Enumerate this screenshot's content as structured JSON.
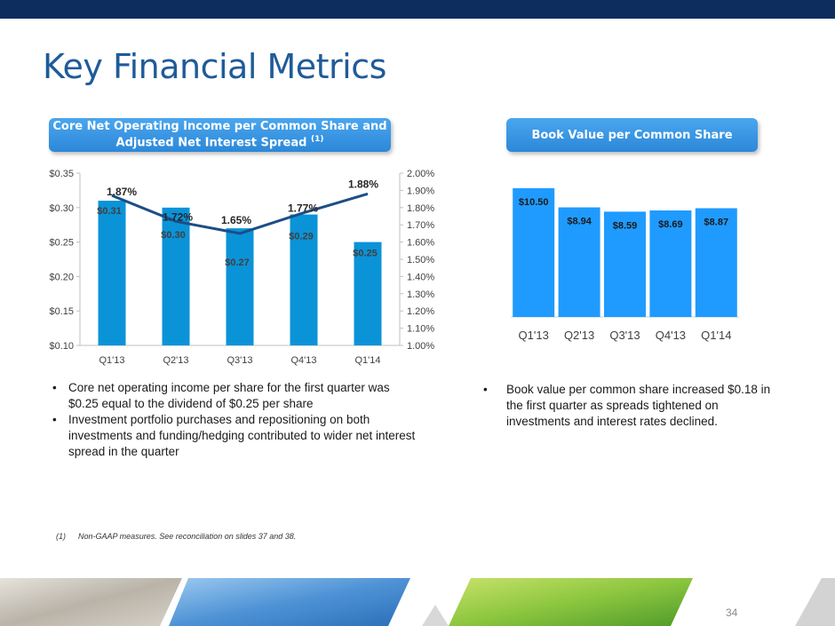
{
  "slide": {
    "title": "Key Financial Metrics",
    "page_number": "34",
    "colors": {
      "top_bar": "#0d2d5e",
      "title": "#1f5b99",
      "pill": "#3597e4",
      "left_bars": "#0b93d8",
      "line": "#1b4e85",
      "right_bars": "#1f9bff"
    }
  },
  "left_panel": {
    "header": "Core Net Operating Income per Common Share and Adjusted Net Interest Spread",
    "header_sup": "(1)",
    "bullets": [
      "Core net operating income per share for the first quarter was $0.25 equal to the dividend of $0.25 per share",
      "Investment portfolio purchases and repositioning on both investments and funding/hedging contributed to wider net interest spread in the quarter"
    ]
  },
  "right_panel": {
    "header": "Book Value per Common Share",
    "bullets": [
      "Book value per common share increased $0.18 in the first quarter as spreads tightened on investments and interest rates declined."
    ]
  },
  "footnote": {
    "marker": "(1)",
    "text": "Non-GAAP measures. See reconciliation on slides 37 and 38."
  },
  "chart_data": [
    {
      "type": "bar+line",
      "title": "",
      "categories": [
        "Q1'13",
        "Q2'13",
        "Q3'13",
        "Q4'13",
        "Q1'14"
      ],
      "series": [
        {
          "type": "bar",
          "axis": "left",
          "values": [
            0.31,
            0.3,
            0.27,
            0.29,
            0.25
          ],
          "labels": [
            "$0.31",
            "$0.30",
            "$0.27",
            "$0.29",
            "$0.25"
          ]
        },
        {
          "type": "line",
          "axis": "right",
          "values": [
            1.87,
            1.72,
            1.65,
            1.77,
            1.88
          ],
          "labels": [
            "1.87%",
            "1.72%",
            "1.65%",
            "1.77%",
            "1.88%"
          ]
        }
      ],
      "y_left": {
        "range": [
          0.1,
          0.35
        ],
        "ticks": [
          "$0.10",
          "$0.15",
          "$0.20",
          "$0.25",
          "$0.30",
          "$0.35"
        ]
      },
      "y_right": {
        "range": [
          1.0,
          2.0
        ],
        "ticks": [
          "1.00%",
          "1.10%",
          "1.20%",
          "1.30%",
          "1.40%",
          "1.50%",
          "1.60%",
          "1.70%",
          "1.80%",
          "1.90%",
          "2.00%"
        ]
      },
      "grid": false,
      "legend": "none"
    },
    {
      "type": "bar",
      "title": "",
      "categories": [
        "Q1'13",
        "Q2'13",
        "Q3'13",
        "Q4'13",
        "Q1'14"
      ],
      "values": [
        10.5,
        8.94,
        8.59,
        8.69,
        8.87
      ],
      "labels": [
        "$10.50",
        "$8.94",
        "$8.59",
        "$8.69",
        "$8.87"
      ],
      "y_axis_visible": false,
      "grid": false,
      "legend": "none"
    }
  ]
}
